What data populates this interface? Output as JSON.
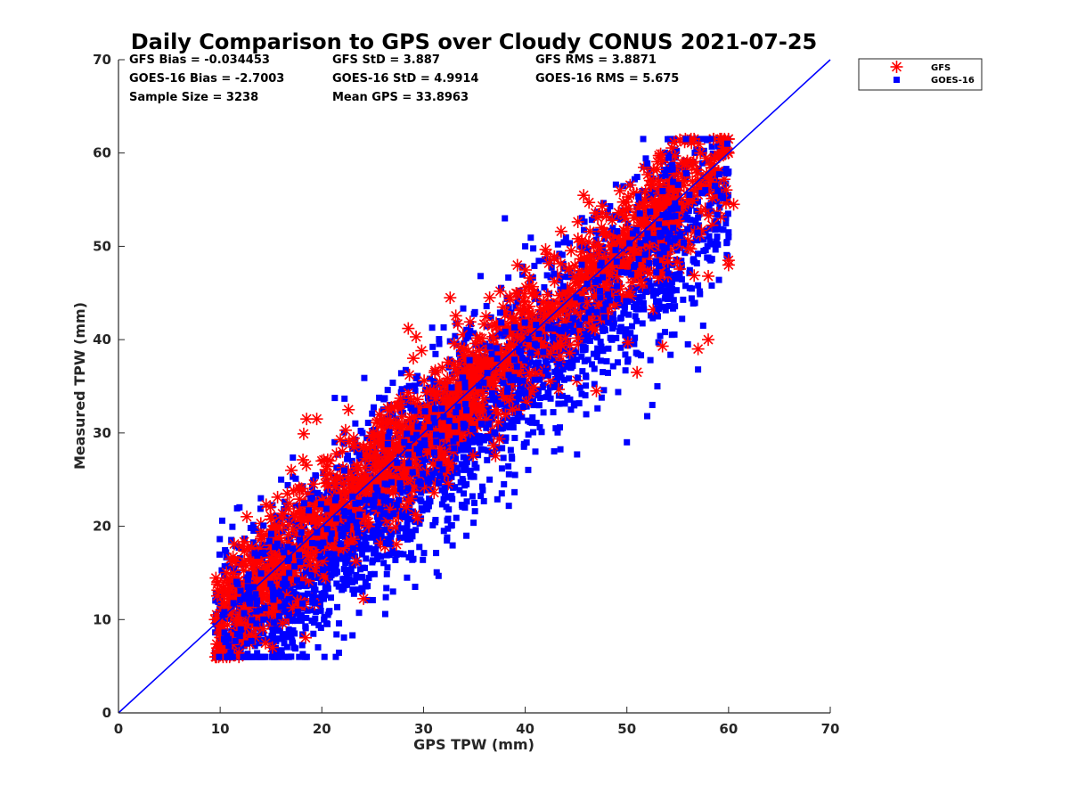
{
  "chart_data": {
    "type": "scatter",
    "title": "Daily Comparison to GPS over Cloudy CONUS 2021-07-25",
    "xlabel": "GPS TPW (mm)",
    "ylabel": "Measured TPW (mm)",
    "xlim": [
      0,
      70
    ],
    "ylim": [
      0,
      70
    ],
    "xticks": [
      "0",
      "10",
      "20",
      "30",
      "40",
      "50",
      "60",
      "70"
    ],
    "yticks": [
      "0",
      "10",
      "20",
      "30",
      "40",
      "50",
      "60",
      "70"
    ],
    "grid": false,
    "legend_position": "outside-top-right",
    "reference_line": {
      "x": [
        0,
        70
      ],
      "y": [
        0,
        70
      ],
      "color": "#0000ff"
    },
    "stats": [
      [
        "GFS Bias = -0.034453",
        "GFS StD = 3.887",
        "GFS RMS = 3.8871"
      ],
      [
        "GOES-16 Bias = -2.7003",
        "GOES-16 StD = 4.9914",
        "GOES-16 RMS = 5.675"
      ],
      [
        "Sample Size = 3238",
        "Mean GPS = 33.8963"
      ]
    ],
    "series": [
      {
        "name": "GFS",
        "marker": "asterisk",
        "color": "#ff0000"
      },
      {
        "name": "GOES-16",
        "marker": "square",
        "color": "#0000ff"
      }
    ],
    "sample_size": 3238,
    "gfs_bias": -0.034453,
    "gfs_std": 3.887,
    "goes_bias": -2.7003,
    "goes_std": 4.9914,
    "outliers": {
      "GFS": [
        [
          9.5,
          10
        ],
        [
          11,
          11
        ],
        [
          14,
          20.3
        ],
        [
          17,
          26
        ],
        [
          18.5,
          31.5
        ],
        [
          19.5,
          31.5
        ],
        [
          28.5,
          41.2
        ],
        [
          36.5,
          44.5
        ],
        [
          38,
          43
        ],
        [
          47.5,
          52
        ],
        [
          55,
          56.5
        ],
        [
          57,
          39
        ],
        [
          58,
          40
        ],
        [
          58,
          46.8
        ],
        [
          60,
          48.5
        ],
        [
          60,
          48
        ],
        [
          59.5,
          55
        ],
        [
          60.5,
          54.5
        ],
        [
          53.5,
          39.3
        ],
        [
          51,
          36.5
        ],
        [
          47,
          34.5
        ],
        [
          29,
          38
        ],
        [
          32,
          35
        ],
        [
          20,
          27
        ],
        [
          13.5,
          14
        ]
      ],
      "GOES-16": [
        [
          9.5,
          6.5
        ],
        [
          11,
          6.8
        ],
        [
          13,
          8.5
        ],
        [
          14,
          23
        ],
        [
          16,
          25
        ],
        [
          21,
          17
        ],
        [
          27,
          13
        ],
        [
          29,
          16.5
        ],
        [
          32,
          19.5
        ],
        [
          35,
          22.5
        ],
        [
          36.5,
          25
        ],
        [
          39,
          25.5
        ],
        [
          41,
          28
        ],
        [
          43,
          30.5
        ],
        [
          44.5,
          32.5
        ],
        [
          46,
          32
        ],
        [
          50,
          29
        ],
        [
          52,
          31.8
        ],
        [
          52.5,
          33
        ],
        [
          53,
          35
        ],
        [
          56,
          39.5
        ],
        [
          57,
          36.8
        ],
        [
          57.5,
          41.5
        ],
        [
          58,
          48.8
        ],
        [
          59,
          61.5
        ],
        [
          59.5,
          61
        ],
        [
          59.5,
          60
        ],
        [
          60,
          58
        ],
        [
          60,
          51.5
        ],
        [
          60,
          51
        ],
        [
          59.5,
          55.5
        ],
        [
          58,
          54
        ],
        [
          38,
          53
        ],
        [
          40,
          50
        ],
        [
          27,
          32
        ],
        [
          31,
          35.5
        ],
        [
          24,
          30
        ],
        [
          12,
          12
        ],
        [
          19,
          11
        ],
        [
          18,
          10.5
        ],
        [
          23,
          14
        ],
        [
          24,
          13
        ]
      ]
    }
  }
}
